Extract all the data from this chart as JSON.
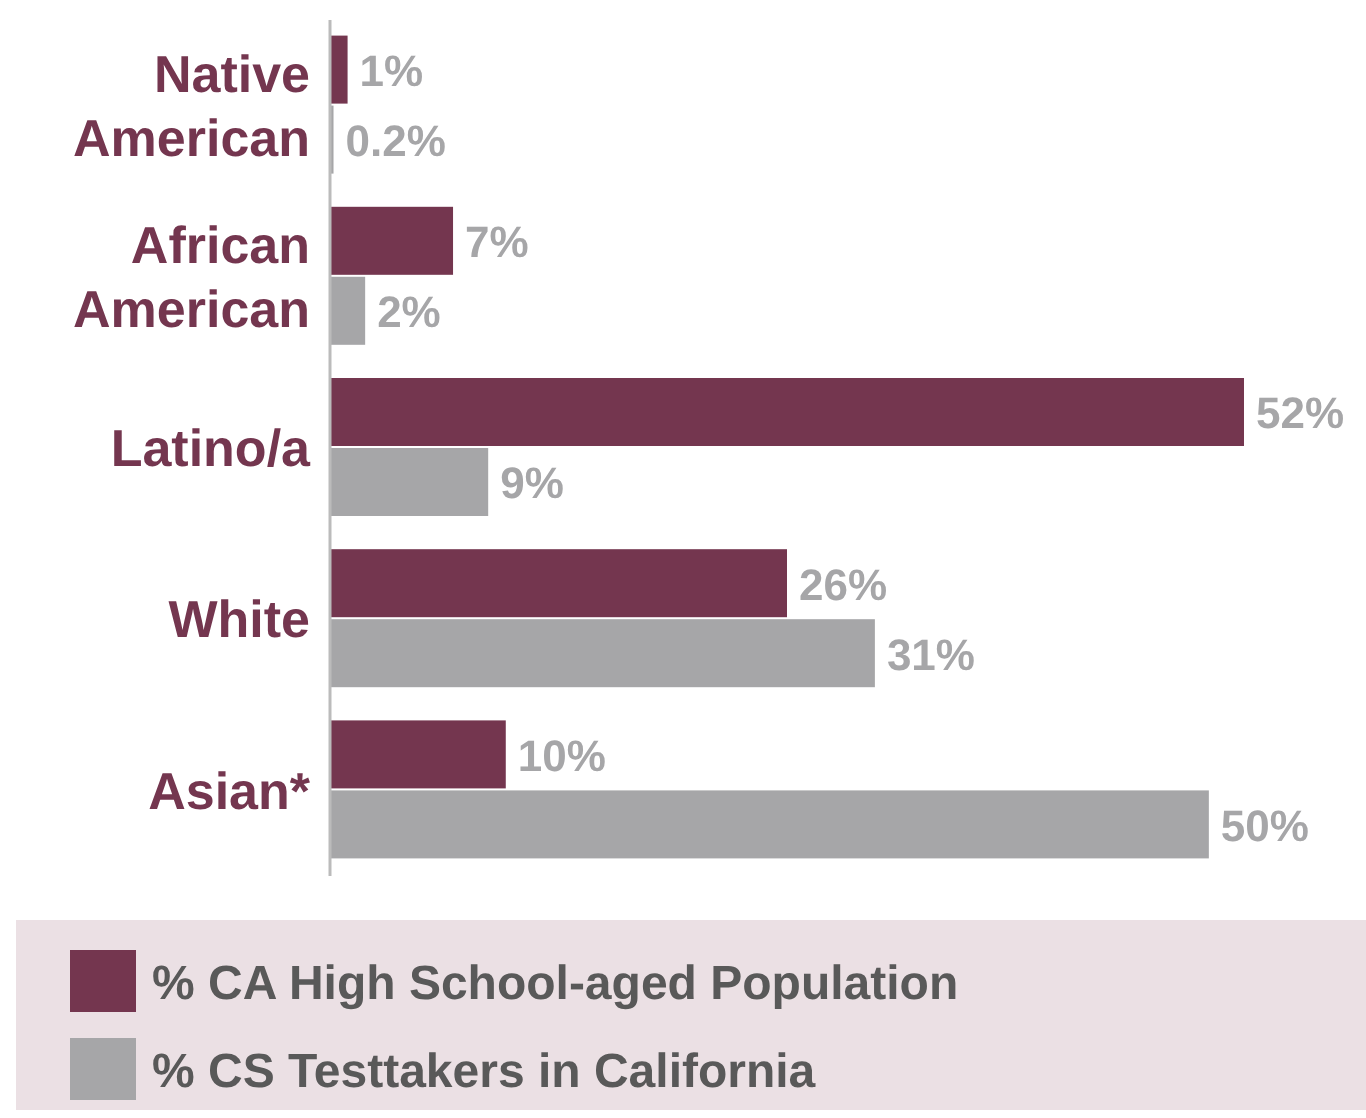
{
  "chart_data": {
    "type": "bar",
    "orientation": "horizontal",
    "categories": [
      "Native American",
      "African American",
      "Latino/a",
      "White",
      "Asian*"
    ],
    "series": [
      {
        "name": "% CA High School-aged Population",
        "color": "#74364f",
        "values": [
          1,
          7,
          52,
          26,
          10
        ],
        "value_labels": [
          "1%",
          "7%",
          "52%",
          "26%",
          "10%"
        ]
      },
      {
        "name": "% CS Testtakers in California",
        "color": "#a6a6a8",
        "values": [
          0.2,
          2,
          9,
          31,
          50
        ],
        "value_labels": [
          "0.2%",
          "2%",
          "9%",
          "31%",
          "50%"
        ]
      }
    ],
    "legend": "bottom"
  }
}
